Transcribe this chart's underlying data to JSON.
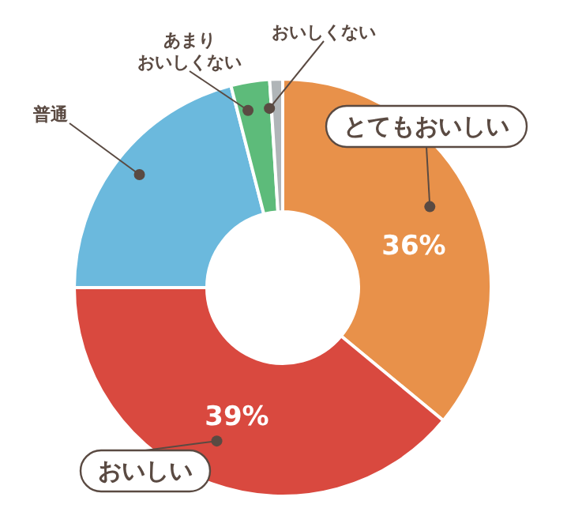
{
  "chart_data": {
    "type": "donut",
    "categories": [
      "とてもおいしい",
      "おいしい",
      "普通",
      "あまりおいしくない",
      "おいしくない"
    ],
    "values": [
      36,
      39,
      21,
      3,
      1
    ],
    "colors": [
      "#e8914a",
      "#d9493f",
      "#6bb9dd",
      "#5dbb7a",
      "#b0b5b8"
    ],
    "value_labels": [
      "36%",
      "39%",
      null,
      null,
      null
    ]
  }
}
